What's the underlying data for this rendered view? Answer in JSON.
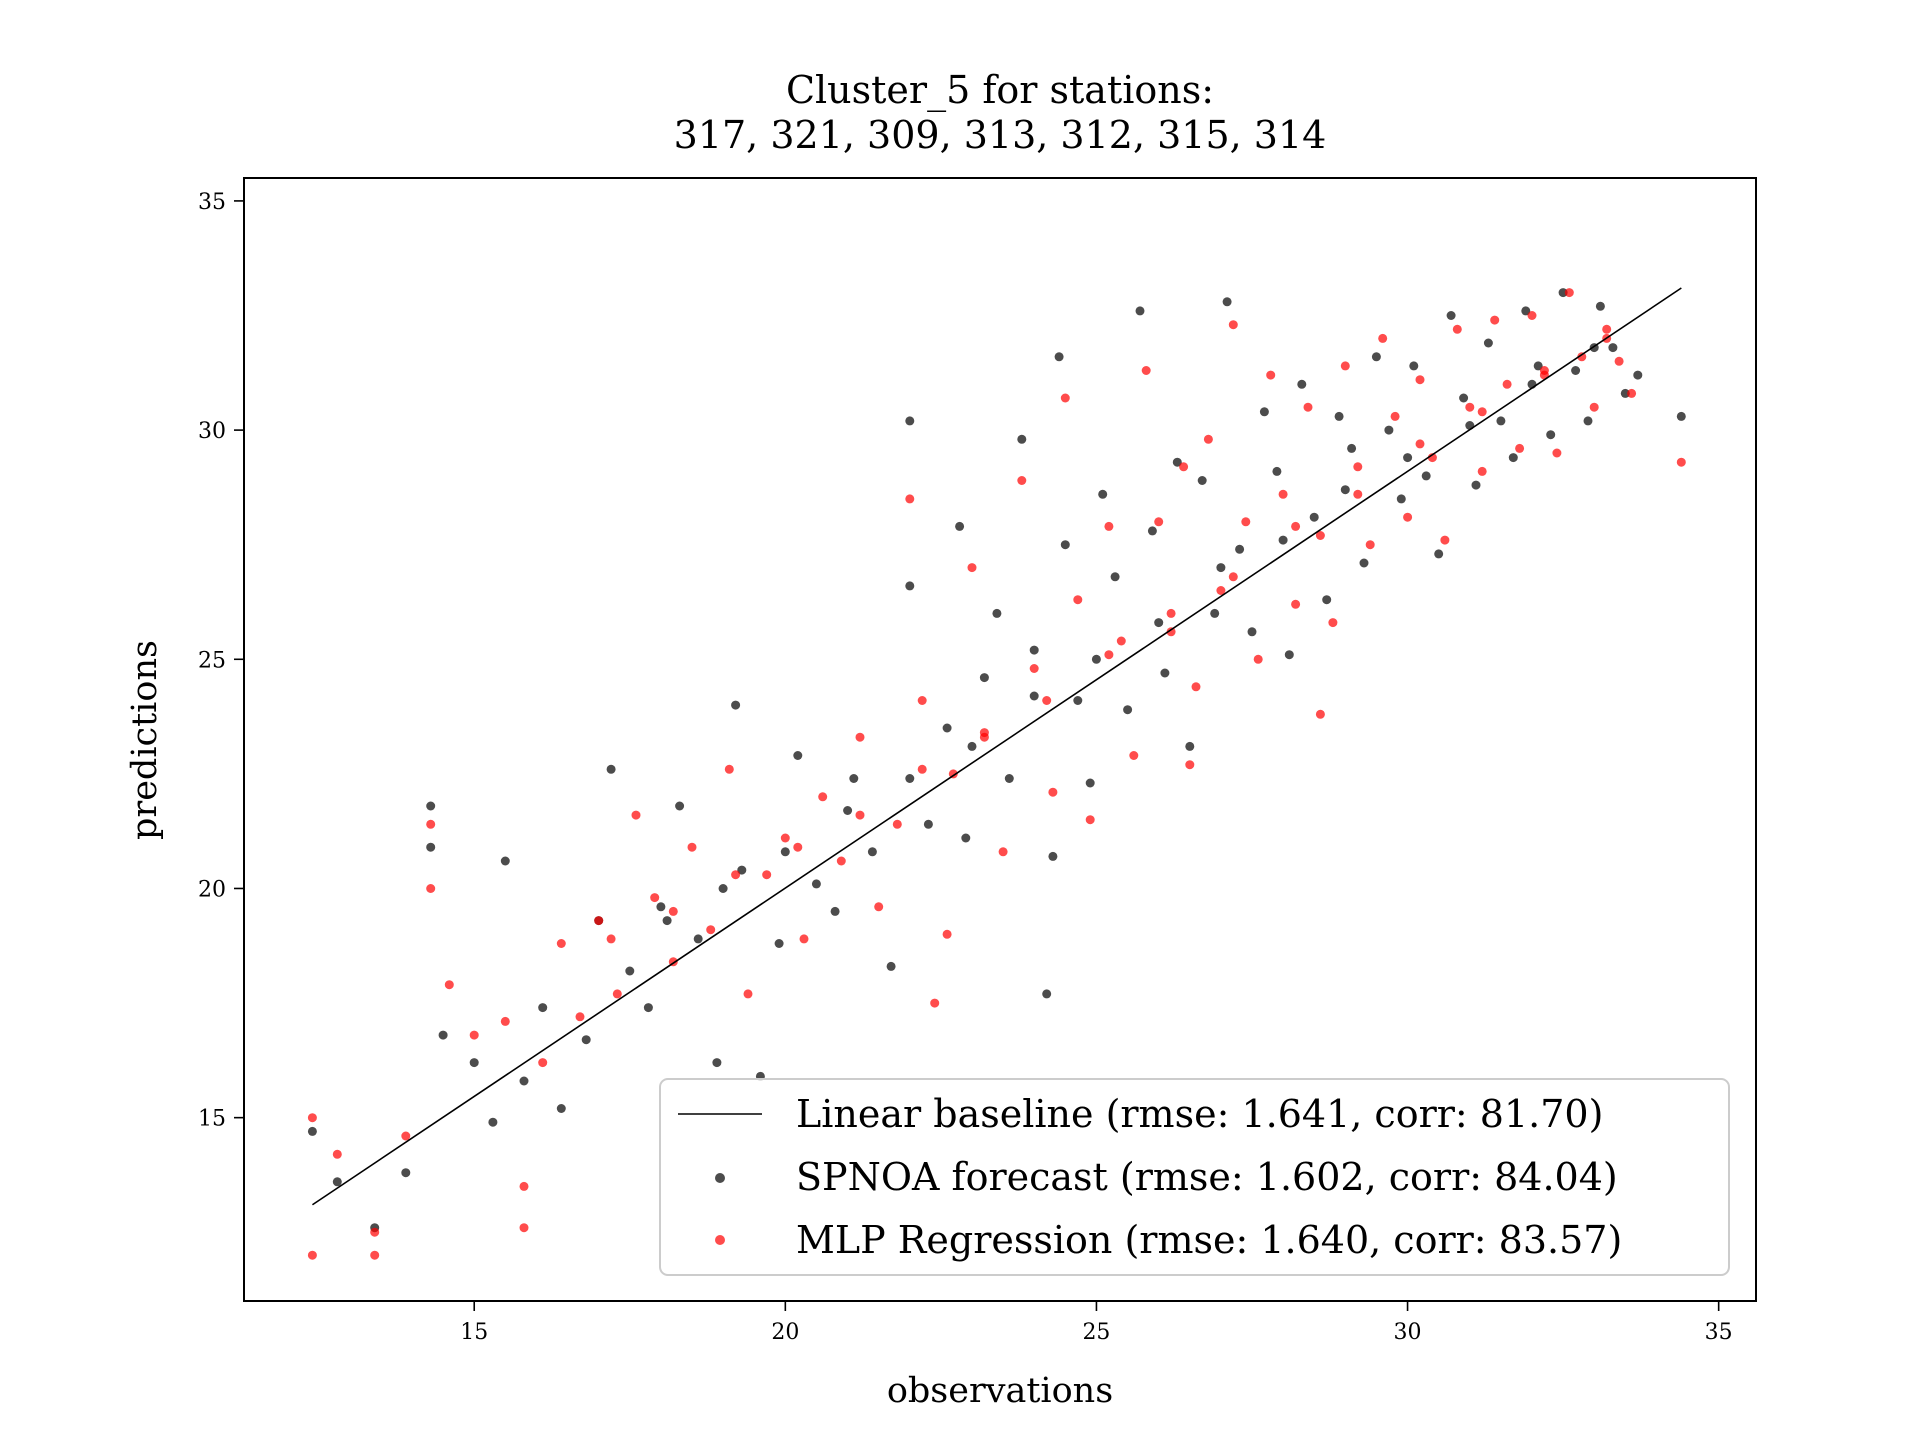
{
  "chart_data": {
    "type": "scatter",
    "title": "Cluster_5 for stations:",
    "subtitle": "317, 321, 309, 313, 312, 315, 314",
    "xlabel": "observations",
    "ylabel": "predictions",
    "xlim": [
      11.3,
      35.6
    ],
    "ylim": [
      11.0,
      35.5
    ],
    "xticks": [
      15,
      20,
      25,
      30,
      35
    ],
    "yticks": [
      15,
      20,
      25,
      30,
      35
    ],
    "grid": false,
    "legend_position": "bottom-right",
    "colors": {
      "black": "#000000",
      "red": "#ff0000"
    },
    "series": [
      {
        "name": "Linear baseline (rmse: 1.641, corr: 81.70)",
        "kind": "line",
        "color": "#000000",
        "x": [
          12.4,
          34.4
        ],
        "y": [
          13.1,
          33.1
        ]
      },
      {
        "name": "SPNOA forecast (rmse: 1.602, corr: 84.04)",
        "kind": "scatter",
        "color": "#000000",
        "points": [
          [
            12.4,
            14.7
          ],
          [
            12.8,
            13.6
          ],
          [
            13.4,
            12.6
          ],
          [
            13.9,
            13.8
          ],
          [
            14.3,
            21.8
          ],
          [
            14.3,
            20.9
          ],
          [
            14.5,
            16.8
          ],
          [
            15.0,
            16.2
          ],
          [
            15.3,
            14.9
          ],
          [
            15.5,
            20.6
          ],
          [
            15.8,
            15.8
          ],
          [
            16.1,
            17.4
          ],
          [
            16.4,
            15.2
          ],
          [
            16.8,
            16.7
          ],
          [
            17.2,
            22.6
          ],
          [
            17.5,
            18.2
          ],
          [
            17.8,
            17.4
          ],
          [
            18.1,
            19.3
          ],
          [
            18.3,
            21.8
          ],
          [
            18.6,
            18.9
          ],
          [
            18.9,
            16.2
          ],
          [
            19.2,
            24.0
          ],
          [
            19.3,
            20.4
          ],
          [
            19.6,
            15.9
          ],
          [
            19.9,
            18.8
          ],
          [
            20.2,
            22.9
          ],
          [
            20.5,
            20.1
          ],
          [
            20.8,
            19.5
          ],
          [
            21.1,
            22.4
          ],
          [
            21.4,
            20.8
          ],
          [
            21.7,
            18.3
          ],
          [
            22.0,
            30.2
          ],
          [
            22.0,
            26.6
          ],
          [
            22.3,
            21.4
          ],
          [
            22.6,
            23.5
          ],
          [
            22.8,
            27.9
          ],
          [
            22.9,
            21.1
          ],
          [
            23.2,
            24.6
          ],
          [
            23.4,
            26.0
          ],
          [
            23.6,
            22.4
          ],
          [
            23.8,
            29.8
          ],
          [
            24.0,
            25.2
          ],
          [
            24.2,
            17.7
          ],
          [
            24.4,
            31.6
          ],
          [
            24.5,
            27.5
          ],
          [
            24.7,
            24.1
          ],
          [
            24.9,
            22.3
          ],
          [
            25.1,
            28.6
          ],
          [
            25.3,
            26.8
          ],
          [
            25.5,
            23.9
          ],
          [
            25.7,
            32.6
          ],
          [
            25.9,
            27.8
          ],
          [
            26.1,
            24.7
          ],
          [
            26.3,
            29.3
          ],
          [
            26.5,
            23.1
          ],
          [
            26.7,
            28.9
          ],
          [
            26.9,
            26.0
          ],
          [
            27.1,
            32.8
          ],
          [
            27.3,
            27.4
          ],
          [
            27.5,
            25.6
          ],
          [
            27.7,
            30.4
          ],
          [
            27.9,
            29.1
          ],
          [
            28.1,
            25.1
          ],
          [
            28.3,
            31.0
          ],
          [
            28.5,
            28.1
          ],
          [
            28.7,
            26.3
          ],
          [
            28.9,
            30.3
          ],
          [
            29.1,
            29.6
          ],
          [
            29.3,
            27.1
          ],
          [
            29.5,
            31.6
          ],
          [
            29.7,
            30.0
          ],
          [
            29.9,
            28.5
          ],
          [
            30.1,
            31.4
          ],
          [
            30.3,
            29.0
          ],
          [
            30.5,
            27.3
          ],
          [
            30.7,
            32.5
          ],
          [
            30.9,
            30.7
          ],
          [
            31.1,
            28.8
          ],
          [
            31.3,
            31.9
          ],
          [
            31.5,
            30.2
          ],
          [
            31.7,
            29.4
          ],
          [
            31.9,
            32.6
          ],
          [
            32.1,
            31.4
          ],
          [
            32.3,
            29.9
          ],
          [
            32.5,
            33.0
          ],
          [
            32.7,
            31.3
          ],
          [
            32.9,
            30.2
          ],
          [
            33.1,
            32.7
          ],
          [
            33.3,
            31.8
          ],
          [
            33.5,
            30.8
          ],
          [
            33.7,
            31.2
          ],
          [
            34.4,
            30.3
          ],
          [
            17.0,
            19.3
          ],
          [
            18.0,
            19.6
          ],
          [
            19.0,
            20.0
          ],
          [
            20.0,
            20.8
          ],
          [
            21.0,
            21.7
          ],
          [
            22.0,
            22.4
          ],
          [
            23.0,
            23.1
          ],
          [
            24.0,
            24.2
          ],
          [
            25.0,
            25.0
          ],
          [
            26.0,
            25.8
          ],
          [
            27.0,
            27.0
          ],
          [
            28.0,
            27.6
          ],
          [
            29.0,
            28.7
          ],
          [
            30.0,
            29.4
          ],
          [
            31.0,
            30.1
          ],
          [
            32.0,
            31.0
          ],
          [
            33.0,
            31.8
          ],
          [
            24.3,
            20.7
          ]
        ]
      },
      {
        "name": "MLP Regression (rmse: 1.640, corr: 83.57)",
        "kind": "scatter",
        "color": "#ff0000",
        "points": [
          [
            12.4,
            12.0
          ],
          [
            12.4,
            15.0
          ],
          [
            12.8,
            14.2
          ],
          [
            13.4,
            12.0
          ],
          [
            13.4,
            12.5
          ],
          [
            13.9,
            14.6
          ],
          [
            14.3,
            21.4
          ],
          [
            14.3,
            20.0
          ],
          [
            14.6,
            17.9
          ],
          [
            15.0,
            16.8
          ],
          [
            15.5,
            17.1
          ],
          [
            15.8,
            12.6
          ],
          [
            15.8,
            13.5
          ],
          [
            16.1,
            16.2
          ],
          [
            16.4,
            18.8
          ],
          [
            16.7,
            17.2
          ],
          [
            17.0,
            19.3
          ],
          [
            17.3,
            17.7
          ],
          [
            17.6,
            21.6
          ],
          [
            17.9,
            19.8
          ],
          [
            18.2,
            18.4
          ],
          [
            18.5,
            20.9
          ],
          [
            18.8,
            19.1
          ],
          [
            19.1,
            22.6
          ],
          [
            19.4,
            17.7
          ],
          [
            19.7,
            20.3
          ],
          [
            20.0,
            21.1
          ],
          [
            20.3,
            18.9
          ],
          [
            20.6,
            22.0
          ],
          [
            20.9,
            20.6
          ],
          [
            21.2,
            23.3
          ],
          [
            21.5,
            19.6
          ],
          [
            21.8,
            21.4
          ],
          [
            22.0,
            28.5
          ],
          [
            22.2,
            24.1
          ],
          [
            22.4,
            17.5
          ],
          [
            22.7,
            22.5
          ],
          [
            23.0,
            27.0
          ],
          [
            23.2,
            23.3
          ],
          [
            23.5,
            20.8
          ],
          [
            23.8,
            28.9
          ],
          [
            24.0,
            24.8
          ],
          [
            24.3,
            22.1
          ],
          [
            24.5,
            30.7
          ],
          [
            24.7,
            26.3
          ],
          [
            24.9,
            21.5
          ],
          [
            25.2,
            27.9
          ],
          [
            25.4,
            25.4
          ],
          [
            25.6,
            22.9
          ],
          [
            25.8,
            31.3
          ],
          [
            26.0,
            28.0
          ],
          [
            26.2,
            25.6
          ],
          [
            26.4,
            29.2
          ],
          [
            26.6,
            24.4
          ],
          [
            26.8,
            29.8
          ],
          [
            27.0,
            26.5
          ],
          [
            27.2,
            32.3
          ],
          [
            27.4,
            28.0
          ],
          [
            27.6,
            25.0
          ],
          [
            27.8,
            31.2
          ],
          [
            28.0,
            28.6
          ],
          [
            28.2,
            26.2
          ],
          [
            28.4,
            30.5
          ],
          [
            28.6,
            27.7
          ],
          [
            28.8,
            25.8
          ],
          [
            29.0,
            31.4
          ],
          [
            29.2,
            29.2
          ],
          [
            29.4,
            27.5
          ],
          [
            29.6,
            32.0
          ],
          [
            29.8,
            30.3
          ],
          [
            30.0,
            28.1
          ],
          [
            30.2,
            31.1
          ],
          [
            30.4,
            29.4
          ],
          [
            30.6,
            27.6
          ],
          [
            30.8,
            32.2
          ],
          [
            31.0,
            30.5
          ],
          [
            31.2,
            29.1
          ],
          [
            31.4,
            32.4
          ],
          [
            31.6,
            31.0
          ],
          [
            31.8,
            29.6
          ],
          [
            32.0,
            32.5
          ],
          [
            32.2,
            31.2
          ],
          [
            32.4,
            29.5
          ],
          [
            32.6,
            33.0
          ],
          [
            32.8,
            31.6
          ],
          [
            33.0,
            30.5
          ],
          [
            33.2,
            32.2
          ],
          [
            33.4,
            31.5
          ],
          [
            33.6,
            30.8
          ],
          [
            34.4,
            29.3
          ],
          [
            17.2,
            18.9
          ],
          [
            18.2,
            19.5
          ],
          [
            19.2,
            20.3
          ],
          [
            20.2,
            20.9
          ],
          [
            21.2,
            21.6
          ],
          [
            22.2,
            22.6
          ],
          [
            23.2,
            23.4
          ],
          [
            24.2,
            24.1
          ],
          [
            25.2,
            25.1
          ],
          [
            26.2,
            26.0
          ],
          [
            27.2,
            26.8
          ],
          [
            28.2,
            27.9
          ],
          [
            29.2,
            28.6
          ],
          [
            30.2,
            29.7
          ],
          [
            31.2,
            30.4
          ],
          [
            32.2,
            31.3
          ],
          [
            33.2,
            32.0
          ],
          [
            22.6,
            19.0
          ],
          [
            26.5,
            22.7
          ],
          [
            28.6,
            23.8
          ]
        ]
      }
    ]
  }
}
